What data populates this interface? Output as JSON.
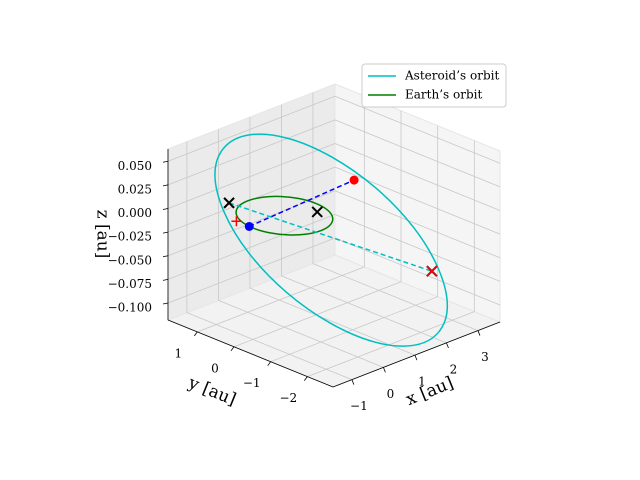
{
  "chart_data": {
    "type": "line3d",
    "xlabel": "x [au]",
    "ylabel": "y [au]",
    "zlabel": "z [au]",
    "xlim": [
      -1.6,
      3.7
    ],
    "ylim": [
      -2.7,
      1.8
    ],
    "zlim": [
      -0.118,
      0.063
    ],
    "xticks": [
      {
        "value": -1,
        "label": "−1"
      },
      0,
      1,
      2,
      3
    ],
    "yticks": [
      {
        "value": -2,
        "label": "−2"
      },
      {
        "value": -1,
        "label": "−1"
      },
      0,
      1
    ],
    "zticks": [
      {
        "value": 0.05,
        "label": "0.050"
      },
      {
        "value": 0.025,
        "label": "0.025"
      },
      {
        "value": 0,
        "label": "0.000"
      },
      {
        "value": -0.025,
        "label": "−0.025"
      },
      {
        "value": -0.05,
        "label": "−0.050"
      },
      {
        "value": -0.075,
        "label": "−0.075"
      },
      {
        "value": -0.1,
        "label": "−0.100"
      }
    ],
    "grid": true,
    "legend": "upper right",
    "series": [
      {
        "name": "Asteroid’s orbit",
        "color": "#00bfbf",
        "x": [
          1.97,
          2.89,
          3.36,
          3.32,
          2.77,
          1.79,
          0.54,
          -0.81,
          -2.03,
          -2.95,
          -3.42,
          -3.38,
          -2.83,
          -1.85,
          -0.6,
          0.75,
          1.97
        ],
        "y": [
          -2.5,
          -1.96,
          -1.31,
          -0.67,
          -0.12,
          0.25,
          0.38,
          0.26,
          -0.1,
          -0.64,
          -1.29,
          -1.93,
          -2.48,
          -2.85,
          -2.98,
          -2.86,
          -2.5
        ],
        "z": [
          -0.11,
          -0.102,
          -0.079,
          -0.045,
          -0.005,
          0.035,
          0.069,
          0.092,
          0.1,
          0.092,
          0.069,
          0.035,
          -0.005,
          -0.045,
          -0.079,
          -0.102,
          -0.11
        ]
      },
      {
        "name": "Earth’s orbit",
        "color": "#008000",
        "x": [
          1,
          0.924,
          0.707,
          0.383,
          0,
          -0.383,
          -0.707,
          -0.924,
          -1,
          -0.924,
          -0.707,
          -0.383,
          0,
          0.383,
          0.707,
          0.924,
          1
        ],
        "y": [
          0,
          0.383,
          0.707,
          0.924,
          1,
          0.924,
          0.707,
          0.383,
          0,
          -0.383,
          -0.707,
          -0.924,
          -1,
          -0.924,
          -0.707,
          -0.383,
          0
        ],
        "z": [
          0,
          0,
          0,
          0,
          0,
          0,
          0,
          0,
          0,
          0,
          0,
          0,
          0,
          0,
          0,
          0,
          0
        ]
      }
    ],
    "lines": [
      {
        "color": "#0000ff",
        "style": "dashed",
        "x": [
          -1.0,
          1.42
        ],
        "y": [
          0.1,
          -0.68
        ],
        "z": [
          0,
          0.03
        ]
      },
      {
        "color": "#00bfbf",
        "style": "dashed",
        "x": [
          -1.14,
          3.19
        ],
        "y": [
          0.53,
          -1.28
        ],
        "z": [
          0.02,
          -0.08
        ]
      }
    ],
    "points": [
      {
        "marker": "o",
        "color": "#ff0000",
        "x": 1.42,
        "y": -0.68,
        "z": 0.03
      },
      {
        "marker": "o",
        "color": "#0000ff",
        "x": -1.0,
        "y": 0.1,
        "z": 0
      },
      {
        "marker": "+",
        "color": "#ff0000",
        "x": -1.0,
        "y": 0.45,
        "z": 0
      },
      {
        "marker": "x",
        "color": "#000000",
        "x": -1.14,
        "y": 0.53,
        "z": 0.02
      },
      {
        "marker": "x",
        "color": "#000000",
        "x": 0.68,
        "y": -0.31,
        "z": 0
      },
      {
        "marker": "x",
        "color": "#000000",
        "x": 3.19,
        "y": -1.28,
        "z": -0.08
      },
      {
        "marker": "x",
        "color": "#ff0000",
        "x": 3.19,
        "y": -1.28,
        "z": -0.08
      }
    ]
  }
}
